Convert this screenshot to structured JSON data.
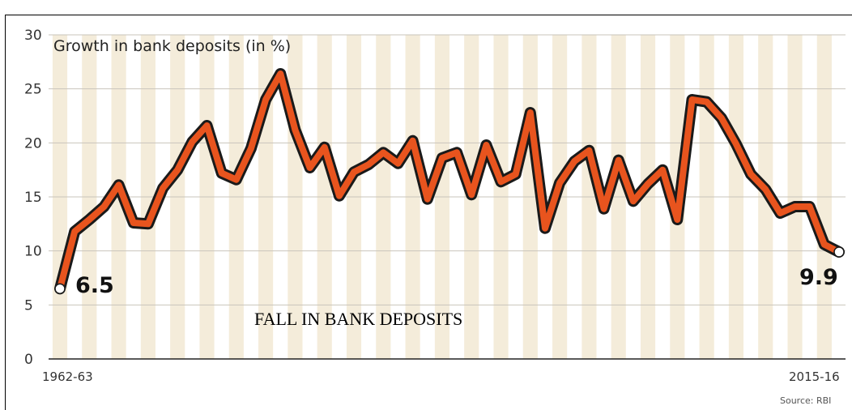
{
  "chart_data": {
    "type": "line",
    "title": "Growth in bank deposits (in %)",
    "caption": "FALL IN BANK DEPOSITS",
    "source": "Source: RBI",
    "x_first_label": "1962-63",
    "x_last_label": "2015-16",
    "ylim": [
      0,
      30
    ],
    "yticks": [
      0,
      5,
      10,
      15,
      20,
      25,
      30
    ],
    "grid": true,
    "series": [
      {
        "color": "#e8541e",
        "values": [
          6.5,
          11.8,
          12.9,
          14.1,
          16.1,
          12.6,
          12.5,
          15.8,
          17.5,
          20.1,
          21.6,
          17.2,
          16.6,
          19.5,
          24.0,
          26.4,
          21.2,
          17.7,
          19.6,
          15.1,
          17.3,
          18.0,
          19.1,
          18.1,
          20.2,
          14.8,
          18.6,
          19.1,
          15.2,
          19.8,
          16.4,
          17.1,
          22.8,
          12.1,
          16.3,
          18.3,
          19.3,
          13.9,
          18.4,
          14.6,
          16.2,
          17.5,
          12.9,
          24.0,
          23.8,
          22.3,
          19.9,
          17.1,
          15.7,
          13.5,
          14.1,
          14.1,
          10.6,
          9.9
        ]
      }
    ],
    "annotations": [
      {
        "label": "6.5",
        "value": 6.5,
        "position": "start"
      },
      {
        "label": "9.9",
        "value": 9.9,
        "position": "end"
      }
    ]
  }
}
